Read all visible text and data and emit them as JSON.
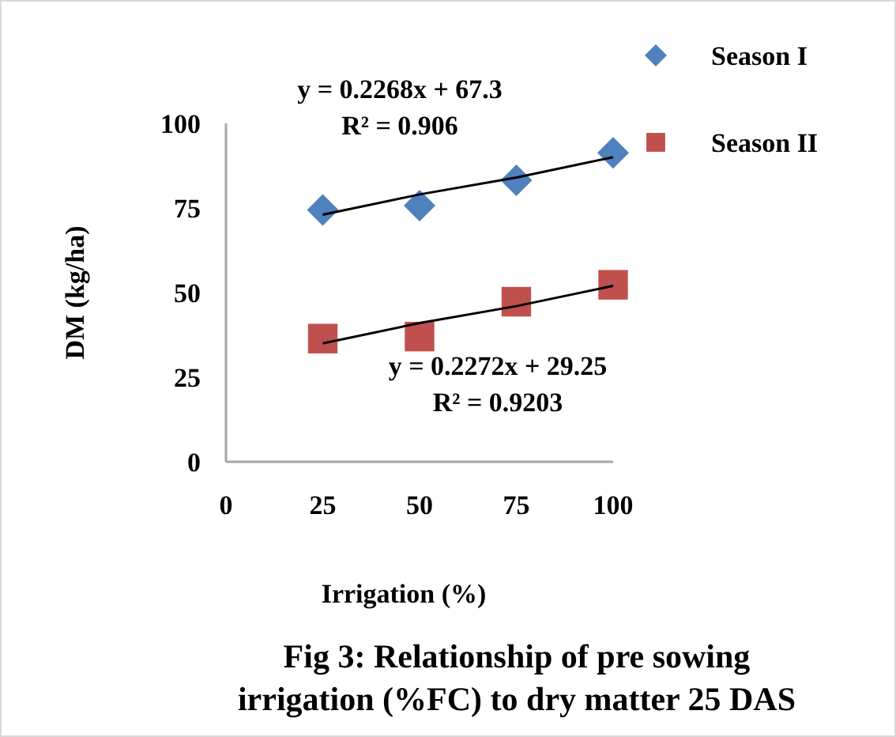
{
  "chart_data": {
    "type": "scatter",
    "title": "Fig 3: Relationship of pre sowing\nirrigation (%FC) to dry matter 25 DAS",
    "xlabel": "Irrigation (%)",
    "ylabel": "DM (kg/ha)",
    "x": [
      25,
      50,
      75,
      100
    ],
    "series": [
      {
        "name": "Season I",
        "color": "#4f81bd",
        "marker": "diamond",
        "values": [
          74.4,
          75.7,
          83.2,
          91.3
        ]
      },
      {
        "name": "Season II",
        "color": "#c0504d",
        "marker": "square",
        "values": [
          36.4,
          37,
          47.3,
          52.3
        ]
      },
      {
        "type": "line",
        "color": "#000000",
        "values": [
          73,
          79,
          84,
          90
        ]
      },
      {
        "type": "line",
        "color": "#000000",
        "values": [
          35,
          41,
          46,
          52
        ]
      }
    ],
    "annotations": [
      "y = 0.2268x + 67.3\nR² = 0.906",
      "y = 0.2272x + 29.25\nR² = 0.9203"
    ],
    "xlim": [
      0,
      100
    ],
    "xticks": [
      0,
      25,
      50,
      75,
      100
    ],
    "ylim": [
      0,
      100
    ],
    "yticks": [
      0,
      25,
      50,
      75,
      100
    ],
    "grid": false,
    "legend": "top right"
  }
}
